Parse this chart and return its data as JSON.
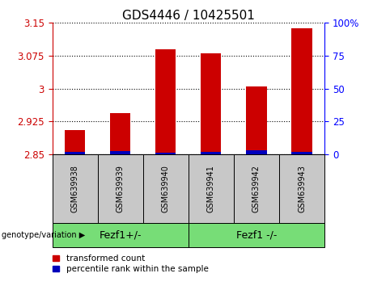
{
  "title": "GDS4446 / 10425501",
  "samples": [
    "GSM639938",
    "GSM639939",
    "GSM639940",
    "GSM639941",
    "GSM639942",
    "GSM639943"
  ],
  "red_values": [
    2.905,
    2.945,
    3.09,
    3.08,
    3.005,
    3.138
  ],
  "blue_percentiles": [
    2.0,
    2.5,
    1.5,
    2.0,
    3.0,
    2.0
  ],
  "baseline": 2.85,
  "ylim_left": [
    2.85,
    3.15
  ],
  "yticks_left": [
    2.85,
    2.925,
    3.0,
    3.075,
    3.15
  ],
  "ylim_right": [
    0,
    100
  ],
  "yticks_right": [
    0,
    25,
    50,
    75,
    100
  ],
  "group1_label": "Fezf1+/-",
  "group2_label": "Fezf1 -/-",
  "group1_indices": [
    0,
    1,
    2
  ],
  "group2_indices": [
    3,
    4,
    5
  ],
  "group_color": "#77DD77",
  "bar_bg_color": "#C8C8C8",
  "red_color": "#CC0000",
  "blue_color": "#0000BB",
  "legend_red": "transformed count",
  "legend_blue": "percentile rank within the sample",
  "genotype_label": "genotype/variation",
  "title_fontsize": 11,
  "tick_fontsize": 8.5,
  "bar_width": 0.45
}
